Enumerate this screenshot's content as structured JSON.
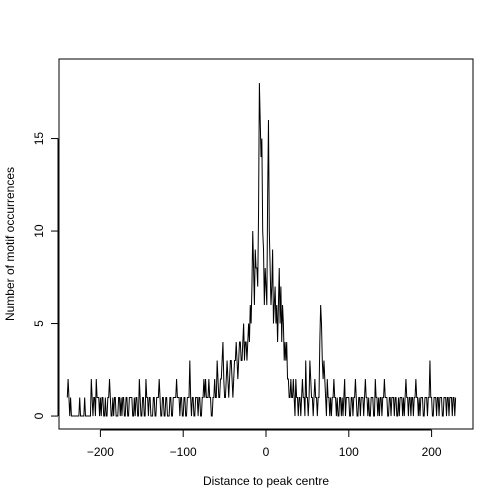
{
  "chart_data": {
    "type": "line",
    "xlabel": "Distance to peak centre",
    "ylabel": "Number of motif occurrences",
    "xlim": [
      -250,
      250
    ],
    "ylim": [
      -0.7,
      19.3
    ],
    "x_ticks": [
      -200,
      -100,
      0,
      100,
      200
    ],
    "y_ticks": [
      0,
      5,
      10,
      15
    ],
    "x_tick_labels": [
      "−200",
      "−100",
      "0",
      "100",
      "200"
    ],
    "y_tick_labels": [
      "0",
      "5",
      "10",
      "15"
    ],
    "grid": false,
    "line_color": "#000000",
    "series": [
      {
        "x_start": -240,
        "x_end": 240,
        "x_step": 1,
        "values": [
          1,
          2,
          1,
          0,
          1,
          0,
          0,
          0,
          0,
          0,
          0,
          0,
          0,
          0,
          0,
          1,
          0,
          0,
          0,
          0,
          0,
          1,
          0,
          0,
          0,
          0,
          0,
          0,
          0,
          2,
          1,
          0,
          1,
          1,
          0,
          2,
          1,
          1,
          1,
          0,
          1,
          0,
          1,
          1,
          0,
          0,
          1,
          0,
          0,
          1,
          1,
          2,
          1,
          0,
          0,
          1,
          0,
          1,
          1,
          0,
          0,
          0,
          1,
          1,
          0,
          1,
          0,
          1,
          1,
          0,
          0,
          1,
          1,
          0,
          0,
          1,
          1,
          1,
          1,
          0,
          0,
          1,
          0,
          1,
          1,
          0,
          0,
          2,
          1,
          0,
          0,
          1,
          1,
          0,
          0,
          2,
          1,
          1,
          0,
          1,
          1,
          0,
          0,
          0,
          1,
          1,
          0,
          0,
          1,
          1,
          1,
          2,
          1,
          0,
          0,
          1,
          1,
          0,
          0,
          1,
          1,
          0,
          0,
          0,
          1,
          1,
          0,
          0,
          1,
          1,
          1,
          1,
          2,
          1,
          1,
          1,
          0,
          1,
          1,
          0,
          0,
          1,
          1,
          0,
          0,
          1,
          1,
          1,
          3,
          1,
          0,
          1,
          1,
          0,
          0,
          1,
          1,
          1,
          0,
          1,
          1,
          0,
          0,
          1,
          1,
          2,
          1,
          2,
          1,
          1,
          1,
          2,
          1,
          1,
          0,
          0,
          1,
          1,
          2,
          1,
          1,
          3,
          2,
          1,
          1,
          2,
          2,
          3,
          4,
          2,
          1,
          1,
          2,
          3,
          2,
          1,
          2,
          3,
          3,
          2,
          1,
          2,
          3,
          3,
          4,
          3,
          2,
          3,
          4,
          4,
          3,
          3,
          4,
          5,
          3,
          4,
          4,
          3,
          4,
          5,
          4,
          6,
          5,
          7,
          10,
          8,
          6,
          9,
          8,
          8,
          7,
          11,
          18,
          16,
          14,
          15,
          10,
          9,
          6,
          8,
          7,
          6,
          12,
          16,
          10,
          8,
          6,
          7,
          9,
          5,
          6,
          7,
          5,
          6,
          4,
          6,
          8,
          5,
          7,
          4,
          6,
          5,
          3,
          4,
          3,
          4,
          2,
          2,
          1,
          1,
          2,
          1,
          1,
          2,
          1,
          0,
          2,
          1,
          1,
          0,
          1,
          1,
          0,
          1,
          2,
          1,
          1,
          0,
          3,
          1,
          1,
          0,
          1,
          3,
          2,
          1,
          1,
          0,
          1,
          2,
          1,
          1,
          0,
          1,
          1,
          4,
          6,
          5,
          3,
          2,
          3,
          2,
          1,
          0,
          2,
          1,
          1,
          0,
          1,
          0,
          1,
          1,
          2,
          1,
          1,
          0,
          1,
          0,
          0,
          1,
          1,
          0,
          1,
          0,
          1,
          2,
          0,
          1,
          1,
          1,
          1,
          0,
          0,
          1,
          1,
          0,
          1,
          1,
          2,
          1,
          0,
          0,
          1,
          1,
          0,
          1,
          1,
          1,
          0,
          1,
          2,
          1,
          1,
          0,
          1,
          0,
          0,
          1,
          1,
          1,
          0,
          0,
          2,
          1,
          1,
          0,
          1,
          0,
          1,
          1,
          0,
          1,
          1,
          2,
          1,
          1,
          1,
          0,
          0,
          1,
          1,
          0,
          1,
          1,
          1,
          0,
          1,
          1,
          0,
          0,
          1,
          0,
          1,
          1,
          1,
          0,
          1,
          0,
          1,
          2,
          1,
          1,
          0,
          1,
          1,
          0,
          1,
          1,
          0,
          1,
          1,
          2,
          1,
          1,
          0,
          1,
          0,
          1,
          1,
          1,
          0,
          0,
          1,
          1,
          1,
          0,
          1,
          1,
          3,
          1,
          1,
          0,
          0,
          1,
          1,
          1,
          0,
          1,
          1,
          0,
          1,
          1,
          1,
          0,
          0,
          1,
          1,
          1,
          0,
          1,
          1,
          0,
          1,
          1,
          1,
          0,
          1,
          1,
          0,
          1
        ]
      }
    ]
  }
}
